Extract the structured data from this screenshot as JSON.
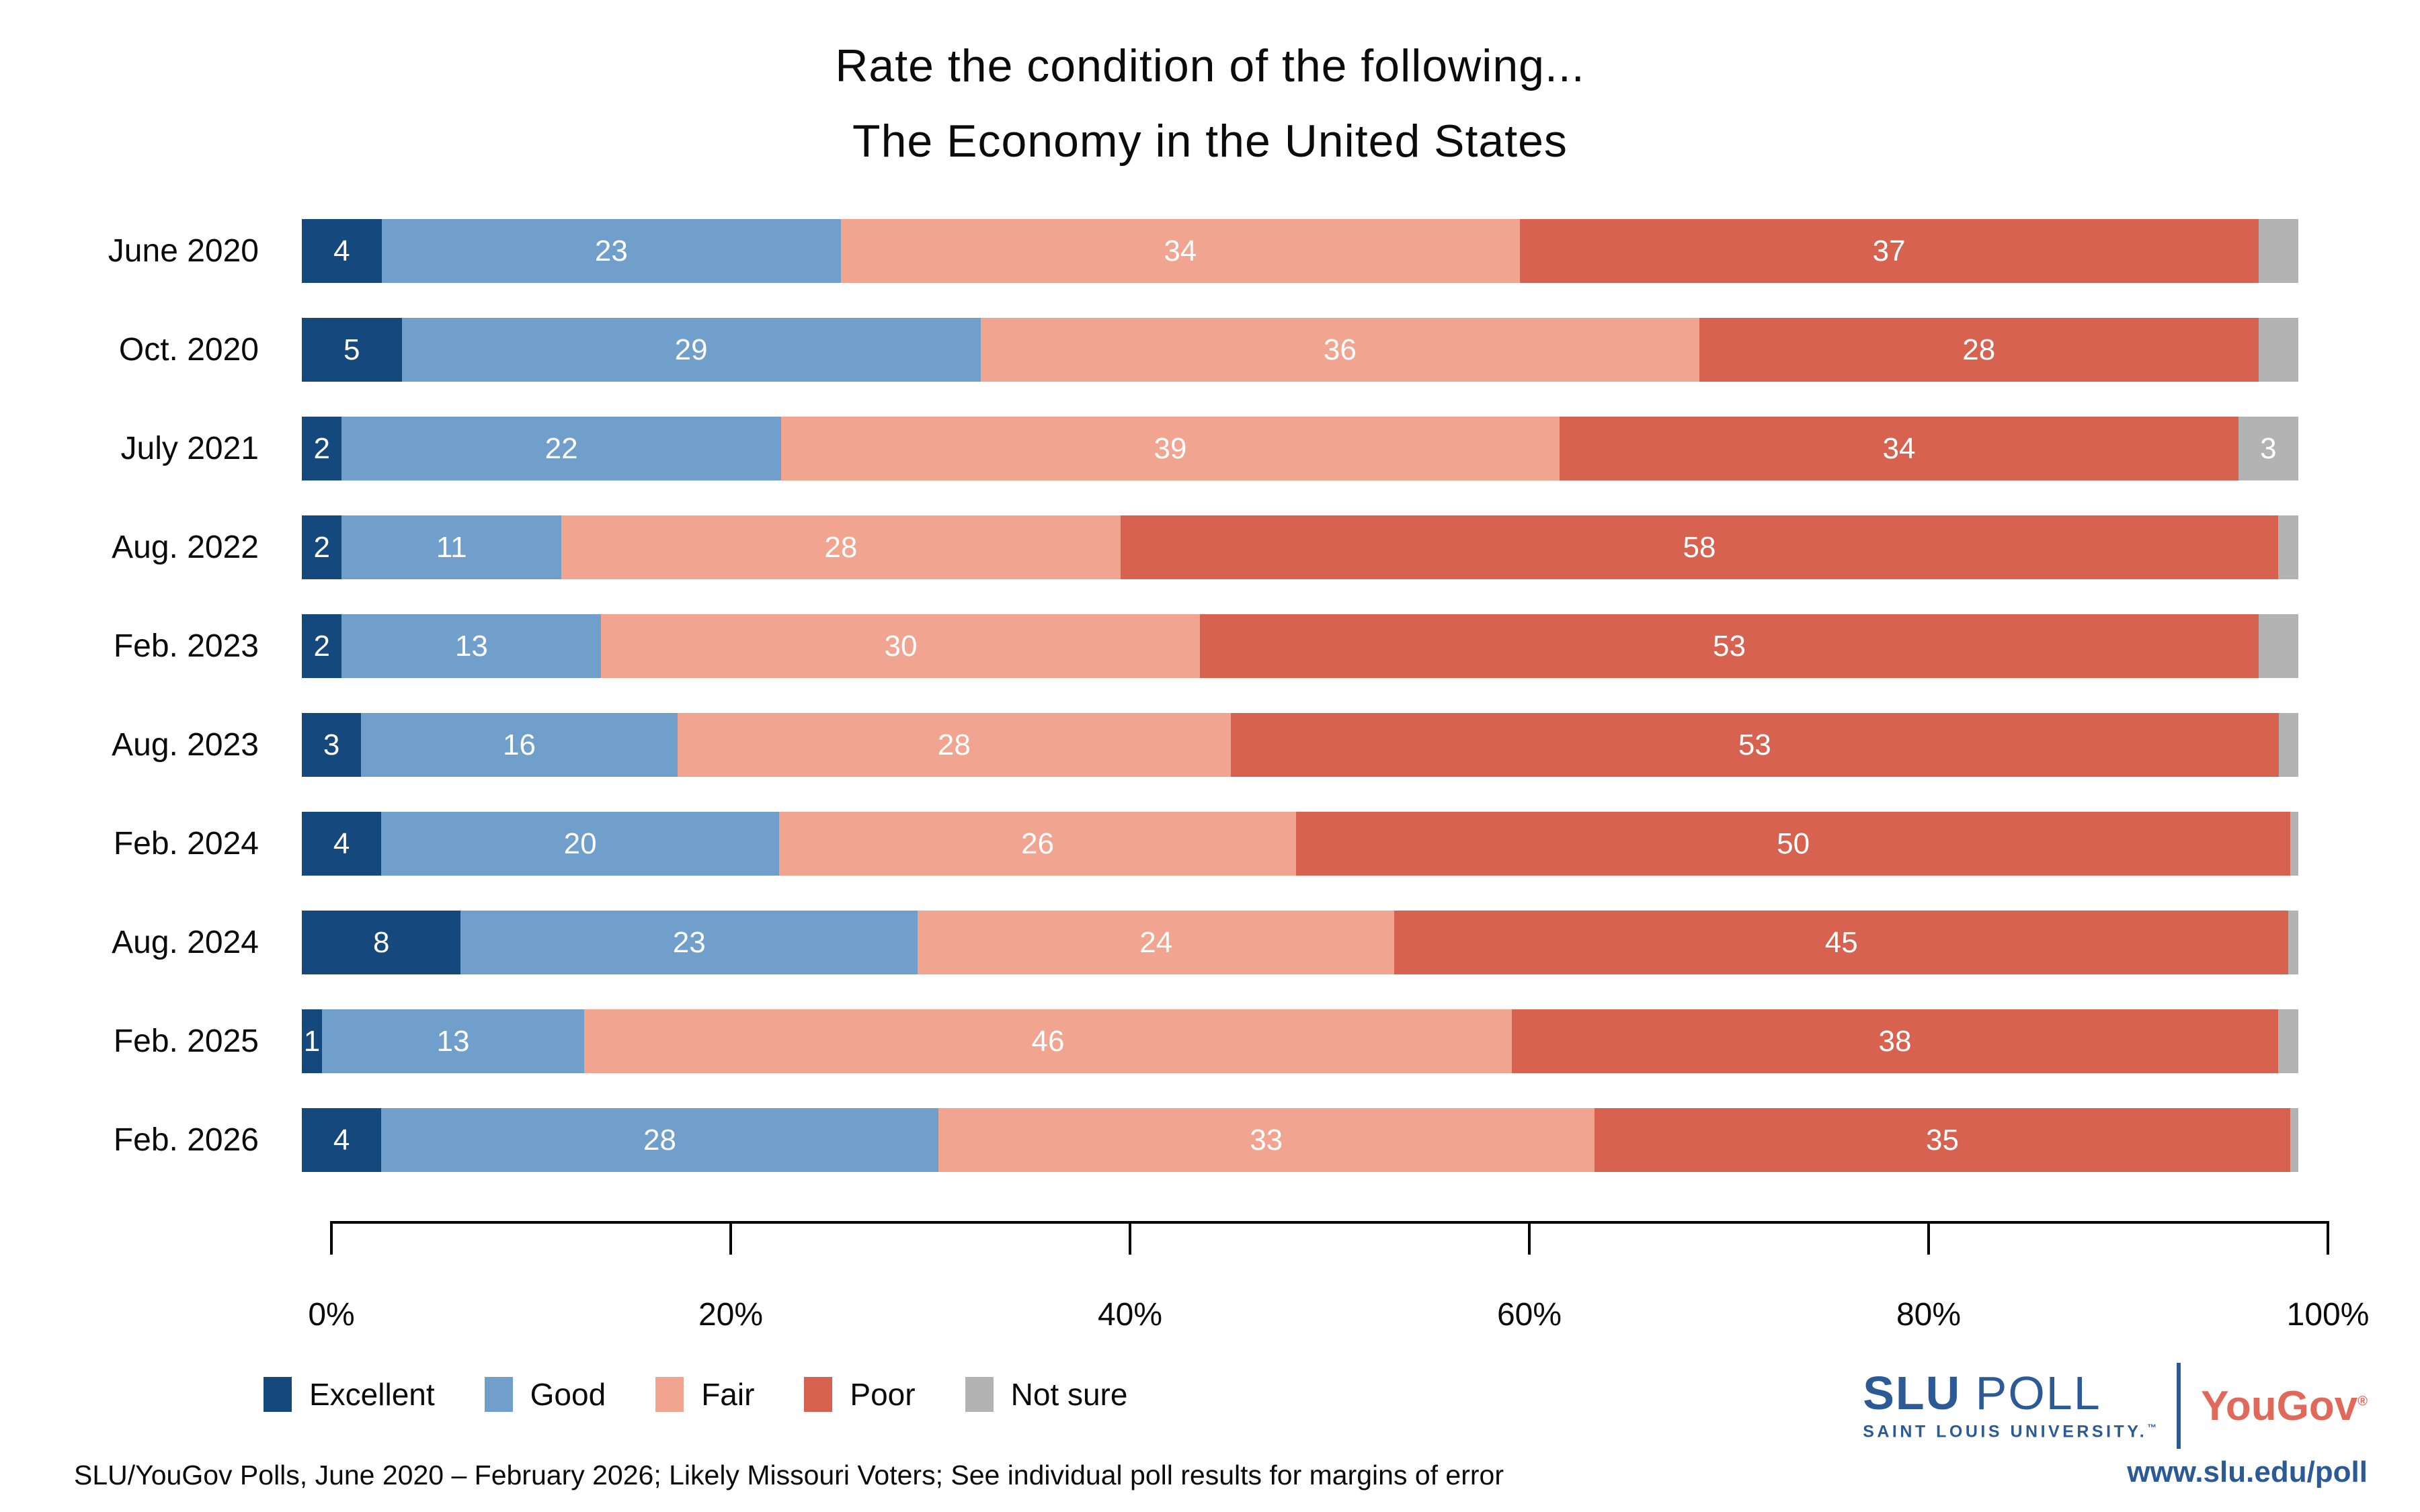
{
  "title": {
    "line1": "Rate the condition of the following...",
    "line2": "The Economy in the United States"
  },
  "chart_data": {
    "type": "bar",
    "stacked": true,
    "orientation": "horizontal",
    "title": "Rate the condition of the following... The Economy in the United States",
    "xlabel": "",
    "ylabel": "",
    "x_range": [
      0,
      100
    ],
    "grid": false,
    "legend_position": "bottom-left",
    "series_labels": [
      "Excellent",
      "Good",
      "Fair",
      "Poor",
      "Not sure"
    ],
    "colors": {
      "Excellent": "#15497e",
      "Good": "#6f9fca",
      "Fair": "#f1a48f",
      "Poor": "#d7624f",
      "Not sure": "#b3b3b3"
    },
    "rows": [
      {
        "category": "June 2020",
        "segments": [
          {
            "name": "Excellent",
            "value": 4,
            "label": "4"
          },
          {
            "name": "Good",
            "value": 23,
            "label": "23"
          },
          {
            "name": "Fair",
            "value": 34,
            "label": "34"
          },
          {
            "name": "Poor",
            "value": 37,
            "label": "37"
          },
          {
            "name": "Not sure",
            "value": 2,
            "label": ""
          }
        ]
      },
      {
        "category": "Oct. 2020",
        "segments": [
          {
            "name": "Excellent",
            "value": 5,
            "label": "5"
          },
          {
            "name": "Good",
            "value": 29,
            "label": "29"
          },
          {
            "name": "Fair",
            "value": 36,
            "label": "36"
          },
          {
            "name": "Poor",
            "value": 28,
            "label": "28"
          },
          {
            "name": "Not sure",
            "value": 2,
            "label": ""
          }
        ]
      },
      {
        "category": "July 2021",
        "segments": [
          {
            "name": "Excellent",
            "value": 2,
            "label": "2"
          },
          {
            "name": "Good",
            "value": 22,
            "label": "22"
          },
          {
            "name": "Fair",
            "value": 39,
            "label": "39"
          },
          {
            "name": "Poor",
            "value": 34,
            "label": "34"
          },
          {
            "name": "Not sure",
            "value": 3,
            "label": "3"
          }
        ]
      },
      {
        "category": "Aug. 2022",
        "segments": [
          {
            "name": "Excellent",
            "value": 2,
            "label": "2"
          },
          {
            "name": "Good",
            "value": 11,
            "label": "11"
          },
          {
            "name": "Fair",
            "value": 28,
            "label": "28"
          },
          {
            "name": "Poor",
            "value": 58,
            "label": "58"
          },
          {
            "name": "Not sure",
            "value": 1,
            "label": ""
          }
        ]
      },
      {
        "category": "Feb. 2023",
        "segments": [
          {
            "name": "Excellent",
            "value": 2,
            "label": "2"
          },
          {
            "name": "Good",
            "value": 13,
            "label": "13"
          },
          {
            "name": "Fair",
            "value": 30,
            "label": "30"
          },
          {
            "name": "Poor",
            "value": 53,
            "label": "53"
          },
          {
            "name": "Not sure",
            "value": 2,
            "label": ""
          }
        ]
      },
      {
        "category": "Aug. 2023",
        "segments": [
          {
            "name": "Excellent",
            "value": 3,
            "label": "3"
          },
          {
            "name": "Good",
            "value": 16,
            "label": "16"
          },
          {
            "name": "Fair",
            "value": 28,
            "label": "28"
          },
          {
            "name": "Poor",
            "value": 53,
            "label": "53"
          },
          {
            "name": "Not sure",
            "value": 1,
            "label": ""
          }
        ]
      },
      {
        "category": "Feb. 2024",
        "segments": [
          {
            "name": "Excellent",
            "value": 4,
            "label": "4"
          },
          {
            "name": "Good",
            "value": 20,
            "label": "20"
          },
          {
            "name": "Fair",
            "value": 26,
            "label": "26"
          },
          {
            "name": "Poor",
            "value": 50,
            "label": "50"
          },
          {
            "name": "Not sure",
            "value": 0.4,
            "label": ""
          }
        ]
      },
      {
        "category": "Aug. 2024",
        "segments": [
          {
            "name": "Excellent",
            "value": 8,
            "label": "8"
          },
          {
            "name": "Good",
            "value": 23,
            "label": "23"
          },
          {
            "name": "Fair",
            "value": 24,
            "label": "24"
          },
          {
            "name": "Poor",
            "value": 45,
            "label": "45"
          },
          {
            "name": "Not sure",
            "value": 0.5,
            "label": ""
          }
        ]
      },
      {
        "category": "Feb. 2025",
        "segments": [
          {
            "name": "Excellent",
            "value": 1,
            "label": "1"
          },
          {
            "name": "Good",
            "value": 13,
            "label": "13"
          },
          {
            "name": "Fair",
            "value": 46,
            "label": "46"
          },
          {
            "name": "Poor",
            "value": 38,
            "label": "38"
          },
          {
            "name": "Not sure",
            "value": 1,
            "label": ""
          }
        ]
      },
      {
        "category": "Feb. 2026",
        "segments": [
          {
            "name": "Excellent",
            "value": 4,
            "label": "4"
          },
          {
            "name": "Good",
            "value": 28,
            "label": "28"
          },
          {
            "name": "Fair",
            "value": 33,
            "label": "33"
          },
          {
            "name": "Poor",
            "value": 35,
            "label": "35"
          },
          {
            "name": "Not sure",
            "value": 0.4,
            "label": ""
          }
        ]
      }
    ],
    "x_axis": {
      "ticks": [
        "0%",
        "20%",
        "40%",
        "60%",
        "80%",
        "100%"
      ]
    },
    "legend": [
      {
        "label": "Excellent",
        "color": "#15497e"
      },
      {
        "label": "Good",
        "color": "#6f9fca"
      },
      {
        "label": "Fair",
        "color": "#f1a48f"
      },
      {
        "label": "Poor",
        "color": "#d7624f"
      },
      {
        "label": "Not sure",
        "color": "#b3b3b3"
      }
    ]
  },
  "footer": {
    "note": "SLU/YouGov Polls, June 2020 – February 2026; Likely Missouri Voters; See individual poll results for margins of error"
  },
  "branding": {
    "slu": "SLU",
    "poll": "POLL",
    "slu_sub": "SAINT LOUIS UNIVERSITY.",
    "tm": "™",
    "yougov": "YouGov",
    "reg": "®",
    "url": "www.slu.edu/poll"
  }
}
